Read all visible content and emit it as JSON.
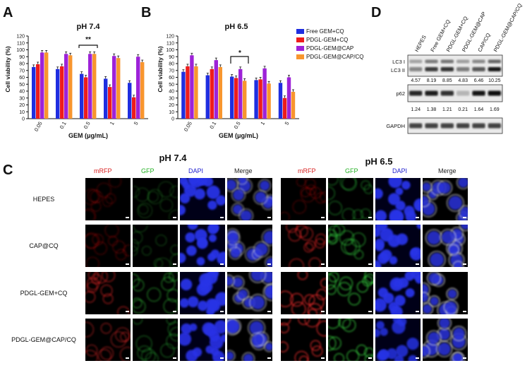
{
  "panels": {
    "A": {
      "letter": "A",
      "title": "pH 7.4",
      "xlabel": "GEM (μg/mL)",
      "ylabel": "Cell viability (%)",
      "sig": "**"
    },
    "B": {
      "letter": "B",
      "title": "pH 6.5",
      "xlabel": "GEM (μg/mL)",
      "ylabel": "Cell viability (%)",
      "sig": "*"
    },
    "C": {
      "letter": "C"
    },
    "D": {
      "letter": "D"
    }
  },
  "legend": [
    "Free GEM+CQ",
    "PDGL-GEM+CQ",
    "PDGL-GEM@CAP",
    "PDGL-GEM@CAP/CQ"
  ],
  "colors": [
    "#1f2ee0",
    "#ee1c1c",
    "#9d22d8",
    "#f8962e"
  ],
  "chart_data": [
    {
      "type": "bar",
      "title": "pH 7.4",
      "xlabel": "GEM (μg/mL)",
      "ylabel": "Cell viability (%)",
      "categories": [
        "0.05",
        "0.1",
        "0.5",
        "1",
        "5"
      ],
      "yticks": [
        "0",
        "10",
        "20",
        "30",
        "40",
        "50",
        "60",
        "70",
        "80",
        "90",
        "100",
        "110",
        "120"
      ],
      "ylim": [
        0,
        120
      ],
      "series": [
        {
          "name": "Free GEM+CQ",
          "values": [
            75,
            72,
            65,
            58,
            52
          ]
        },
        {
          "name": "PDGL-GEM+CQ",
          "values": [
            79,
            76,
            60,
            46,
            31
          ]
        },
        {
          "name": "PDGL-GEM@CAP",
          "values": [
            96,
            94,
            94,
            91,
            90
          ]
        },
        {
          "name": "PDGL-GEM@CAP/CQ",
          "values": [
            96,
            92,
            94,
            88,
            82
          ]
        }
      ]
    },
    {
      "type": "bar",
      "title": "pH 6.5",
      "xlabel": "GEM (μg/mL)",
      "ylabel": "Cell viability (%)",
      "categories": [
        "0.05",
        "0.1",
        "0.5",
        "1",
        "5"
      ],
      "yticks": [
        "0",
        "10",
        "20",
        "30",
        "40",
        "50",
        "60",
        "70",
        "80",
        "90",
        "100",
        "110",
        "120"
      ],
      "ylim": [
        0,
        120
      ],
      "series": [
        {
          "name": "Free GEM+CQ",
          "values": [
            68,
            63,
            61,
            56,
            52
          ]
        },
        {
          "name": "PDGL-GEM+CQ",
          "values": [
            76,
            72,
            59,
            57,
            30
          ]
        },
        {
          "name": "PDGL-GEM@CAP",
          "values": [
            92,
            85,
            72,
            73,
            60
          ]
        },
        {
          "name": "PDGL-GEM@CAP/CQ",
          "values": [
            76,
            75,
            55,
            51,
            39
          ]
        }
      ]
    }
  ],
  "western": {
    "lanes": [
      "HEPES",
      "Free GEM+CQ",
      "PDGL-GEM+CQ",
      "PDGL-GEM@CAP",
      "CAP/CQ",
      "PDGL-GEM@CAP/CQ"
    ],
    "lc3_label_1": "LC3 I",
    "lc3_label_2": "LC3 II",
    "lc3_values": [
      "4.57",
      "8.19",
      "8.85",
      "4.83",
      "6.46",
      "10.25"
    ],
    "p62_label": "p62",
    "p62_values": [
      "1.24",
      "1.38",
      "1.21",
      "0.21",
      "1.64",
      "1.69"
    ],
    "gapdh_label": "GAPDH",
    "lc3_intensity": [
      0.35,
      0.75,
      0.8,
      0.4,
      0.6,
      0.95
    ],
    "p62_intensity": [
      0.85,
      0.9,
      0.8,
      0.1,
      0.95,
      1.0
    ],
    "gapdh_intensity": [
      0.7,
      0.7,
      0.7,
      0.7,
      0.7,
      0.7
    ]
  },
  "microscopy": {
    "ph_left": "pH 7.4",
    "ph_right": "pH 6.5",
    "channels": [
      "mRFP",
      "GFP",
      "DAPI",
      "Merge"
    ],
    "channel_colors": [
      "#d92020",
      "#22b022",
      "#2020d0",
      "#222222"
    ],
    "rows": [
      "HEPES",
      "CAP@CQ",
      "PDGL-GEM+CQ",
      "PDGL-GEM@CAP/CQ"
    ]
  }
}
